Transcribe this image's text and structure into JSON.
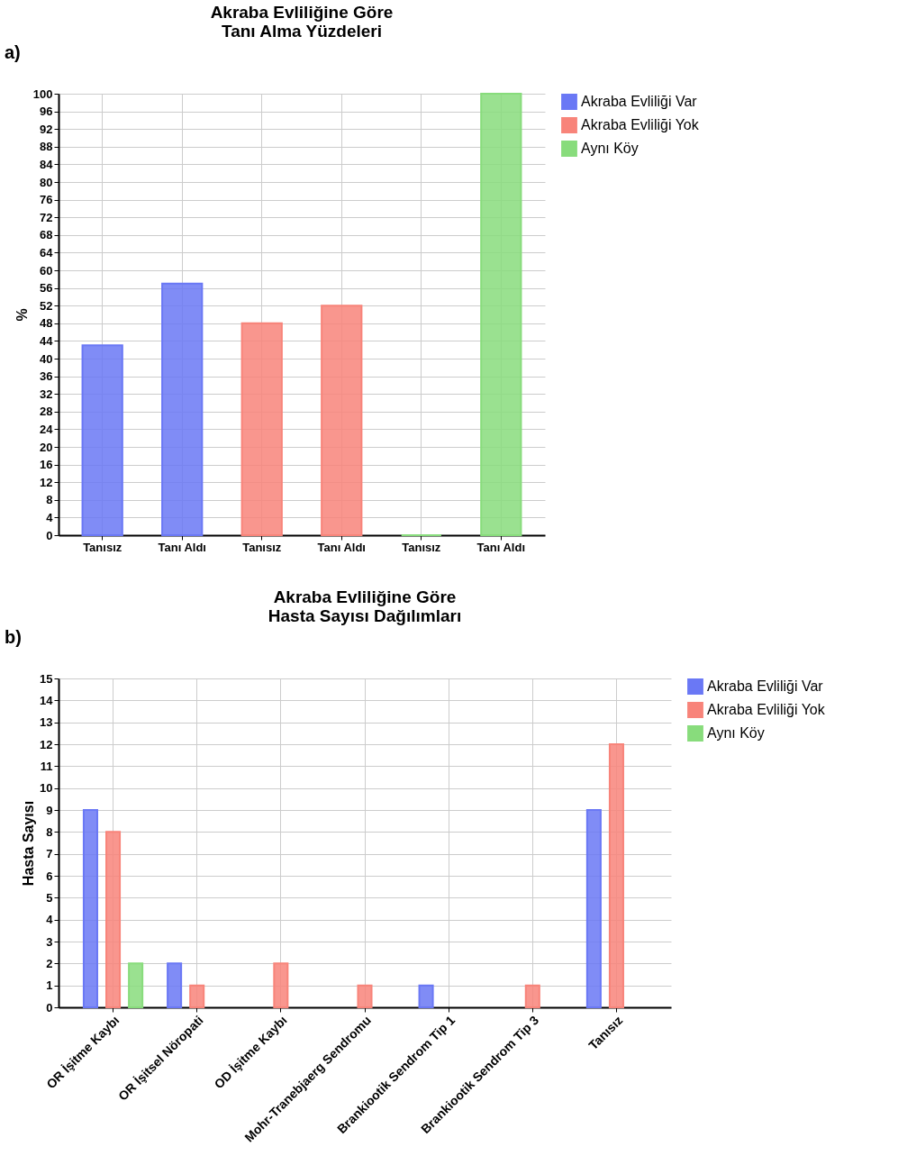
{
  "chart_data": [
    {
      "type": "bar",
      "title": "Akraba Evliliğine Göre\nTanı Alma Yüzdeleri",
      "ylabel": "%",
      "annotations": [
        "a)"
      ],
      "categories": [
        "Tanısız",
        "Tanı Aldı",
        "Tanısız",
        "Tanı Aldı",
        "Tanısız",
        "Tanı Aldı"
      ],
      "series": [
        {
          "name": "Akraba Evliliği Var",
          "color": "#6a78f5",
          "values": [
            43,
            57,
            null,
            null,
            null,
            null
          ]
        },
        {
          "name": "Akraba Evliliği Yok",
          "color": "#f8847a",
          "values": [
            null,
            null,
            48,
            52,
            null,
            null
          ]
        },
        {
          "name": "Aynı Köy",
          "color": "#88dc7c",
          "values": [
            null,
            null,
            null,
            null,
            0,
            100
          ]
        }
      ],
      "ylim": [
        0,
        100
      ],
      "yticks": [
        0,
        4,
        8,
        12,
        16,
        20,
        24,
        28,
        32,
        36,
        40,
        44,
        48,
        52,
        56,
        60,
        64,
        68,
        72,
        76,
        80,
        84,
        88,
        92,
        96,
        100
      ],
      "grid": true,
      "legend": "top right"
    },
    {
      "type": "bar",
      "title": "Akraba Evliliğine Göre\nHasta Sayısı Dağılımları",
      "ylabel": "Hasta Sayısı",
      "annotations": [
        "b)"
      ],
      "categories": [
        "OR İşitme Kaybı",
        "OR İşitsel Nöropati",
        "OD İşitme Kaybı",
        "Mohr-Tranebjaerg Sendromu",
        "Brankiootik Sendrom Tip 1",
        "Brankiootik Sendrom Tip 3",
        "Tanısız"
      ],
      "series": [
        {
          "name": "Akraba Evliliği Var",
          "color": "#6a78f5",
          "values": [
            9,
            2,
            null,
            null,
            1,
            null,
            9
          ]
        },
        {
          "name": "Akraba Evliliği Yok",
          "color": "#f8847a",
          "values": [
            8,
            1,
            2,
            1,
            null,
            1,
            12
          ]
        },
        {
          "name": "Aynı Köy",
          "color": "#88dc7c",
          "values": [
            2,
            null,
            null,
            null,
            null,
            null,
            null
          ]
        }
      ],
      "ylim": [
        0,
        15
      ],
      "yticks": [
        0,
        1,
        2,
        3,
        4,
        5,
        6,
        7,
        8,
        9,
        10,
        11,
        12,
        13,
        14,
        15
      ],
      "grid": true,
      "legend": "top right"
    }
  ]
}
